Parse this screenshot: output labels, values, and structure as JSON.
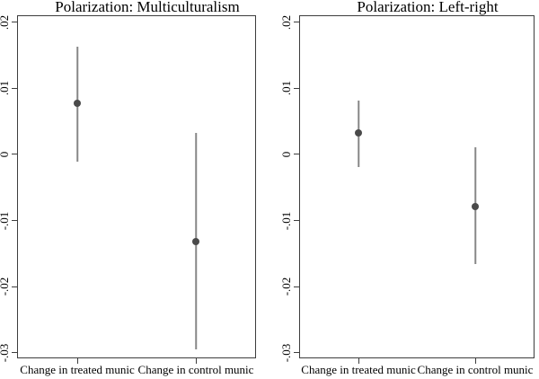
{
  "styles": {
    "marker_color": "#4a4a4a",
    "ci_color": "#878787",
    "axis_color": "#3d3d3d",
    "text_color": "#000000",
    "background_color": "#ffffff"
  },
  "chart_data": [
    {
      "type": "scatter",
      "subtype": "point-estimates-with-confidence-intervals",
      "title": "Polarization: Multiculturalism",
      "categories": [
        "Change in treated munic",
        "Change in control munic"
      ],
      "series": [
        {
          "name": "estimate",
          "points": [
            {
              "category": "Change in treated munic",
              "estimate": 0.0077,
              "ci_low": -0.0011,
              "ci_high": 0.0163
            },
            {
              "category": "Change in control munic",
              "estimate": -0.0132,
              "ci_low": -0.0295,
              "ci_high": 0.0033
            }
          ]
        }
      ],
      "xlabel": "",
      "ylabel": "",
      "ylim": [
        -0.0307,
        0.0209
      ],
      "yticks": [
        {
          "label": ".02",
          "value": 0.02
        },
        {
          "label": ".01",
          "value": 0.01
        },
        {
          "label": "0",
          "value": 0
        },
        {
          "label": "-.01",
          "value": -0.01
        },
        {
          "label": "-.02",
          "value": -0.02
        },
        {
          "label": "-.03",
          "value": -0.03
        }
      ],
      "grid": false,
      "legend": false
    },
    {
      "type": "scatter",
      "subtype": "point-estimates-with-confidence-intervals",
      "title": "Polarization: Left-right",
      "categories": [
        "Change in treated munic",
        "Change in control munic"
      ],
      "series": [
        {
          "name": "estimate",
          "points": [
            {
              "category": "Change in treated munic",
              "estimate": 0.0033,
              "ci_low": -0.0019,
              "ci_high": 0.0082
            },
            {
              "category": "Change in control munic",
              "estimate": -0.0079,
              "ci_low": -0.0166,
              "ci_high": 0.0011
            }
          ]
        }
      ],
      "xlabel": "",
      "ylabel": "",
      "ylim": [
        -0.0307,
        0.0209
      ],
      "yticks": [
        {
          "label": ".02",
          "value": 0.02
        },
        {
          "label": ".01",
          "value": 0.01
        },
        {
          "label": "0",
          "value": 0
        },
        {
          "label": "-.01",
          "value": -0.01
        },
        {
          "label": "-.02",
          "value": -0.02
        },
        {
          "label": "-.03",
          "value": -0.03
        }
      ],
      "grid": false,
      "legend": false
    }
  ]
}
